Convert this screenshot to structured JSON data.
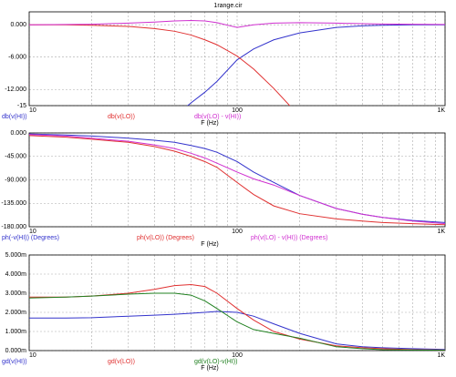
{
  "title": "1range.cir",
  "chart_data": [
    {
      "type": "line",
      "log_x": true,
      "grid": true,
      "xlabel": "F (Hz)",
      "x": [
        10,
        15,
        20,
        30,
        40,
        50,
        60,
        70,
        80,
        100,
        120,
        150,
        200,
        300,
        400,
        500,
        700,
        1000
      ],
      "xlim": [
        10,
        1000
      ],
      "xticks": [
        10,
        100,
        {
          "value": 1000,
          "label": "1K"
        }
      ],
      "ylim": [
        -15,
        2.4
      ],
      "yticks": [
        {
          "value": 0,
          "label": "0.000"
        },
        {
          "value": -6,
          "label": "-6.000"
        },
        {
          "value": -12,
          "label": "-12.000"
        },
        -15
      ],
      "series": [
        {
          "name": "db(v(HI))",
          "color": "#3333cc",
          "values": [
            null,
            null,
            null,
            null,
            null,
            -17,
            -14.5,
            -12.5,
            -10.5,
            -6.5,
            -4.5,
            -2.8,
            -1.5,
            -0.5,
            -0.2,
            -0.1,
            0,
            0
          ]
        },
        {
          "name": "db(v(LO))",
          "color": "#e03030",
          "values": [
            0,
            0,
            -0.1,
            -0.3,
            -0.7,
            -1.2,
            -1.9,
            -2.8,
            -3.7,
            -5.8,
            -8.2,
            -11.8,
            -17,
            null,
            null,
            null,
            null,
            null
          ]
        },
        {
          "name": "db(v(LO) - v(HI))",
          "color": "#d030d0",
          "values": [
            0,
            0.05,
            0.1,
            0.3,
            0.5,
            0.7,
            0.8,
            0.7,
            0.4,
            -0.5,
            0,
            0.3,
            0.4,
            0.3,
            0.2,
            0.15,
            0.1,
            0.05
          ]
        }
      ]
    },
    {
      "type": "line",
      "log_x": true,
      "grid": true,
      "xlabel": "F (Hz)",
      "x": [
        10,
        15,
        20,
        30,
        40,
        50,
        60,
        70,
        80,
        100,
        120,
        150,
        200,
        300,
        400,
        500,
        700,
        1000
      ],
      "xlim": [
        10,
        1000
      ],
      "xticks": [
        10,
        100,
        {
          "value": 1000,
          "label": "1K"
        }
      ],
      "ylim": [
        -180,
        0
      ],
      "yticks": [
        {
          "value": 0,
          "label": "0.000"
        },
        {
          "value": -45,
          "label": "-45.000"
        },
        {
          "value": -90,
          "label": "-90.000"
        },
        {
          "value": -135,
          "label": "-135.000"
        },
        {
          "value": -180,
          "label": "-180.000"
        }
      ],
      "series": [
        {
          "name": "ph(-v(HI)) (Degrees)",
          "color": "#3333cc",
          "values": [
            -2,
            -4,
            -6,
            -10,
            -14,
            -18,
            -24,
            -30,
            -37,
            -55,
            -75,
            -95,
            -120,
            -145,
            -156,
            -162,
            -168,
            -172
          ]
        },
        {
          "name": "ph(v(LO)) (Degrees)",
          "color": "#e03030",
          "values": [
            -5,
            -8,
            -12,
            -18,
            -26,
            -35,
            -45,
            -55,
            -66,
            -95,
            -118,
            -140,
            -155,
            -165,
            -169,
            -172,
            -174,
            -176
          ]
        },
        {
          "name": "ph(v(LO) - v(HI)) (Degrees)",
          "color": "#d030d0",
          "values": [
            -3,
            -6,
            -10,
            -16,
            -23,
            -30,
            -39,
            -48,
            -58,
            -75,
            -88,
            -100,
            -120,
            -145,
            -156,
            -162,
            -169,
            -174
          ]
        }
      ]
    },
    {
      "type": "line",
      "log_x": true,
      "grid": true,
      "xlabel": "F (Hz)",
      "x": [
        10,
        15,
        20,
        30,
        40,
        50,
        60,
        70,
        80,
        100,
        120,
        150,
        200,
        300,
        400,
        500,
        700,
        1000
      ],
      "xlim": [
        10,
        1000
      ],
      "xticks": [
        10,
        100,
        {
          "value": 1000,
          "label": "1K"
        }
      ],
      "ylim": [
        0,
        0.005
      ],
      "yticks": [
        {
          "value": 0,
          "label": "0.000m"
        },
        {
          "value": 0.001,
          "label": "1.000m"
        },
        {
          "value": 0.002,
          "label": "2.000m"
        },
        {
          "value": 0.003,
          "label": "3.000m"
        },
        {
          "value": 0.004,
          "label": "4.000m"
        },
        {
          "value": 0.005,
          "label": "5.000m"
        }
      ],
      "series": [
        {
          "name": "gd(v(HI))",
          "color": "#3333cc",
          "values": [
            0.0017,
            0.0017,
            0.00172,
            0.0018,
            0.00185,
            0.0019,
            0.00195,
            0.002,
            0.00205,
            0.002,
            0.0018,
            0.0014,
            0.0009,
            0.00035,
            0.0002,
            0.00015,
            0.0001,
            6e-05
          ]
        },
        {
          "name": "gd(v(LO))",
          "color": "#e03030",
          "values": [
            0.0028,
            0.0028,
            0.00285,
            0.003,
            0.0032,
            0.0034,
            0.00345,
            0.00335,
            0.003,
            0.0022,
            0.0016,
            0.001,
            0.0006,
            0.00025,
            0.00015,
            0.0001,
            5e-05,
            3e-05
          ]
        },
        {
          "name": "gd(v(LO)-v(HI))",
          "color": "#208020",
          "values": [
            0.00275,
            0.0028,
            0.00285,
            0.00295,
            0.003,
            0.003,
            0.0029,
            0.0026,
            0.0022,
            0.0015,
            0.0011,
            0.0009,
            0.00065,
            0.0002,
            0.0001,
            5e-05,
            3e-05,
            2e-05
          ]
        }
      ]
    }
  ]
}
